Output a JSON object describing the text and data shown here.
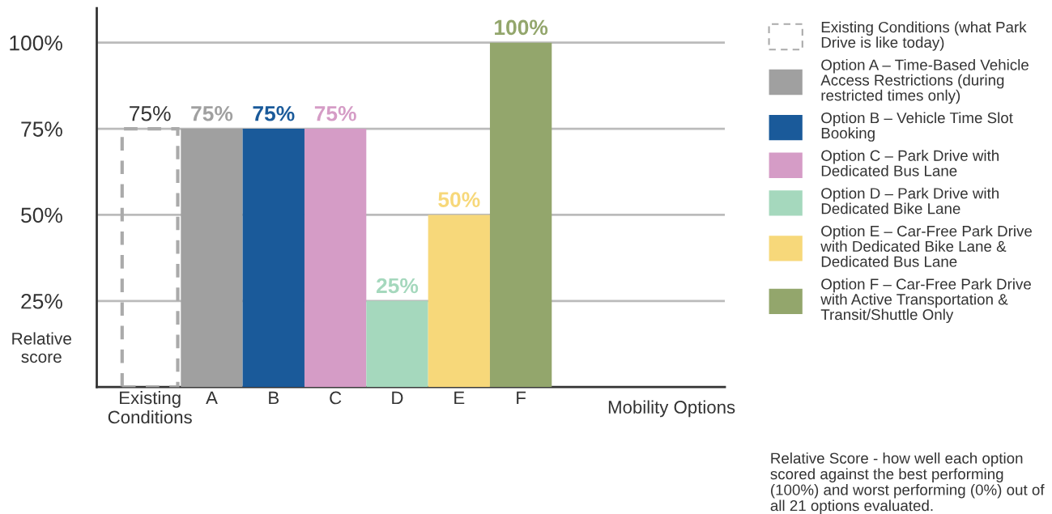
{
  "chart_data": {
    "type": "bar",
    "categories": [
      "Existing\nConditions",
      "A",
      "B",
      "C",
      "D",
      "E",
      "F"
    ],
    "series": [
      {
        "name": "Existing Conditions (what Park\nDrive is like today)",
        "color": "#aaaaaa",
        "line_style": "dashed",
        "values": [
          75,
          null,
          null,
          null,
          null,
          null,
          null
        ],
        "value_labels": [
          "75%",
          null,
          null,
          null,
          null,
          null,
          null
        ]
      },
      {
        "name": "Option A – Time-Based Vehicle\nAccess Restrictions (during\nrestricted times only)",
        "color": "#a0a0a0",
        "values": [
          null,
          75,
          null,
          null,
          null,
          null,
          null
        ],
        "value_labels": [
          null,
          "75%",
          null,
          null,
          null,
          null,
          null
        ]
      },
      {
        "name": "Option B – Vehicle Time Slot\nBooking",
        "color": "#1a5a9a",
        "values": [
          null,
          null,
          75,
          null,
          null,
          null,
          null
        ],
        "value_labels": [
          null,
          null,
          "75%",
          null,
          null,
          null,
          null
        ]
      },
      {
        "name": "Option C – Park Drive with\nDedicated Bus Lane",
        "color": "#d59cc6",
        "values": [
          null,
          null,
          null,
          75,
          null,
          null,
          null
        ],
        "value_labels": [
          null,
          null,
          null,
          "75%",
          null,
          null,
          null
        ]
      },
      {
        "name": "Option D – Park Drive with\nDedicated Bike Lane",
        "color": "#a5d8bd",
        "values": [
          null,
          null,
          null,
          null,
          25,
          null,
          null
        ],
        "value_labels": [
          null,
          null,
          null,
          null,
          "25%",
          null,
          null
        ]
      },
      {
        "name": "Option E – Car-Free Park Drive\nwith Dedicated Bike Lane &\nDedicated Bus Lane",
        "color": "#f7d87a",
        "values": [
          null,
          null,
          null,
          null,
          null,
          50,
          null
        ],
        "value_labels": [
          null,
          null,
          null,
          null,
          null,
          "50%",
          null
        ]
      },
      {
        "name": "Option F – Car-Free Park Drive\nwith Active Transportation &\nTransit/Shuttle Only",
        "color": "#93a66c",
        "values": [
          null,
          null,
          null,
          null,
          null,
          null,
          100
        ],
        "value_labels": [
          null,
          null,
          null,
          null,
          null,
          null,
          "100%"
        ]
      }
    ],
    "xlabel": "Mobility Options",
    "ylabel": "Relative\nscore",
    "ylim": [
      0,
      110
    ],
    "yticks": [
      {
        "value": 25,
        "label": "25%"
      },
      {
        "value": 50,
        "label": "50%"
      },
      {
        "value": 75,
        "label": "75%"
      },
      {
        "value": 100,
        "label": "100%"
      }
    ],
    "grid": "y",
    "legend": "right",
    "annotations": [
      "Relative Score - how well each option scored against the best performing (100%) and worst performing (0%) out of all 21 options evaluated."
    ]
  }
}
